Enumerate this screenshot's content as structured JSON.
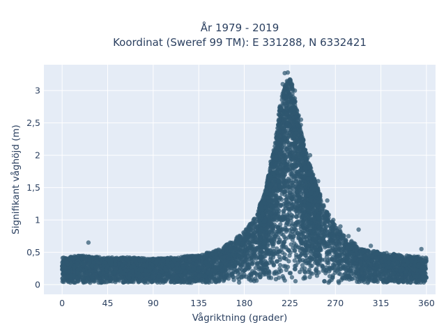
{
  "chart_data": {
    "type": "scatter",
    "title": "År 1979 - 2019",
    "subtitle": "Koordinat (Sweref 99 TM): E 331288, N 6332421",
    "xlabel": "Vågriktning (grader)",
    "ylabel": "Signifikant våghöjd (m)",
    "xlim": [
      -18,
      369
    ],
    "ylim": [
      -0.15,
      3.4
    ],
    "x_ticks": [
      0,
      45,
      90,
      135,
      180,
      225,
      270,
      315,
      360
    ],
    "x_tick_labels": [
      "0",
      "45",
      "90",
      "135",
      "180",
      "225",
      "270",
      "315",
      "360"
    ],
    "y_ticks": [
      0,
      0.5,
      1,
      1.5,
      2,
      2.5,
      3
    ],
    "y_tick_labels": [
      "0",
      "0,5",
      "1",
      "1,5",
      "2",
      "2,5",
      "3"
    ],
    "grid": true,
    "background": "#e5ecf6",
    "marker_color": "#2f5870",
    "point_density_envelope": {
      "x": [
        0,
        20,
        45,
        70,
        90,
        110,
        135,
        150,
        165,
        180,
        190,
        200,
        210,
        215,
        220,
        225,
        230,
        235,
        240,
        250,
        260,
        270,
        280,
        295,
        315,
        340,
        360
      ],
      "y_max": [
        0.42,
        0.45,
        0.42,
        0.42,
        0.4,
        0.42,
        0.46,
        0.52,
        0.62,
        0.8,
        1.0,
        1.35,
        2.1,
        2.7,
        3.05,
        3.2,
        2.85,
        2.5,
        2.05,
        1.55,
        1.15,
        0.9,
        0.72,
        0.55,
        0.5,
        0.45,
        0.42
      ]
    },
    "outliers": [
      {
        "x": 26,
        "y": 0.65
      },
      {
        "x": 293,
        "y": 0.85
      },
      {
        "x": 275,
        "y": 0.9
      },
      {
        "x": 253,
        "y": 1.6
      },
      {
        "x": 262,
        "y": 1.3
      },
      {
        "x": 268,
        "y": 1.0
      },
      {
        "x": 197,
        "y": 1.2
      },
      {
        "x": 203,
        "y": 1.6
      },
      {
        "x": 206,
        "y": 1.9
      },
      {
        "x": 220,
        "y": 3.27
      },
      {
        "x": 223,
        "y": 3.28
      },
      {
        "x": 230,
        "y": 3.0
      },
      {
        "x": 218,
        "y": 3.1
      },
      {
        "x": 236,
        "y": 2.55
      },
      {
        "x": 245,
        "y": 2.0
      },
      {
        "x": 248,
        "y": 1.7
      },
      {
        "x": 283,
        "y": 0.75
      },
      {
        "x": 305,
        "y": 0.6
      },
      {
        "x": 355,
        "y": 0.55
      }
    ]
  }
}
